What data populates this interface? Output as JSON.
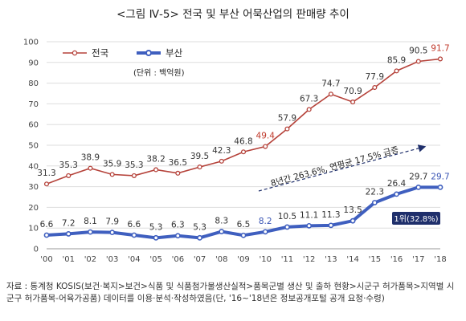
{
  "title": "<그림 Ⅳ-5> 전국 및 부산 어묵산업의 판매량 추이",
  "source_note": "자료 : 통계청 KOSIS(보건·복지>보건>식품 및 식품첨가물생산실적>품목군별 생산 및 출하 현황>시군구 허가품목>지역별 시군구 허가품목-어육가공품) 데이터를 이용·분석·작성하였음(단, '16~'18년은 정보공개포털 공개 요청·수령)",
  "colors": {
    "national": "#b5423a",
    "busan": "#3f5fbf",
    "callout_bg": "#1f2f6b",
    "grid": "#dddddd"
  },
  "chart_data": {
    "type": "line",
    "categories": [
      "'00",
      "'01",
      "'02",
      "'03",
      "'04",
      "'05",
      "'06",
      "'07",
      "'08",
      "'09",
      "'10",
      "'11",
      "'12",
      "'13",
      "'14",
      "'15",
      "'16",
      "'17",
      "'18"
    ],
    "ylim": [
      0,
      100
    ],
    "yticks": [
      0,
      10,
      20,
      30,
      40,
      50,
      60,
      70,
      80,
      90,
      100
    ],
    "grid": true,
    "legend_position": "top-left",
    "unit": "(단위 : 백억원)",
    "series": [
      {
        "name": "전국",
        "values": [
          31.3,
          35.3,
          38.9,
          35.9,
          35.3,
          38.2,
          36.5,
          39.5,
          42.3,
          46.8,
          49.4,
          57.9,
          67.3,
          74.7,
          70.9,
          77.9,
          85.9,
          90.5,
          91.7
        ]
      },
      {
        "name": "부산",
        "values": [
          6.6,
          7.2,
          8.1,
          7.9,
          6.6,
          5.3,
          6.3,
          5.3,
          8.3,
          6.5,
          8.2,
          10.5,
          11.1,
          11.3,
          13.5,
          22.3,
          26.4,
          29.7,
          29.7
        ]
      }
    ],
    "annotations": {
      "growth": "8년간 263.6%, 연평균 17.5% 급증",
      "callout": "1위(32.8%)"
    }
  }
}
